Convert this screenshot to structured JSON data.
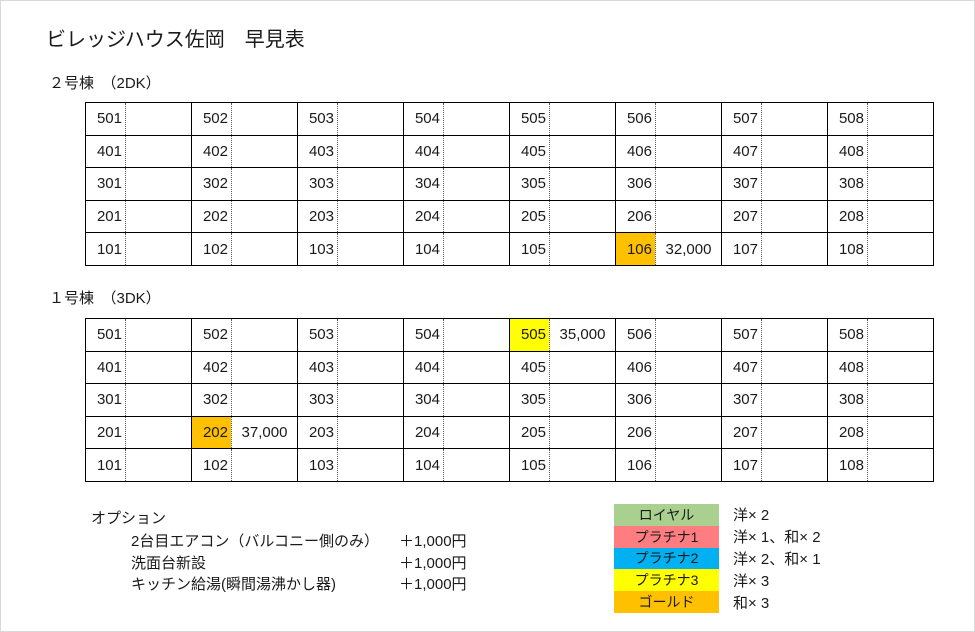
{
  "page": {
    "title": "ビレッジハウス佐岡　早見表"
  },
  "highlight_colors": {
    "gold": "#FFC000",
    "yellow": "#FFFF00"
  },
  "buildings": [
    {
      "name": "２号棟　（2DK）",
      "rows": [
        [
          {
            "room": "501"
          },
          {
            "room": "502"
          },
          {
            "room": "503"
          },
          {
            "room": "504"
          },
          {
            "room": "505"
          },
          {
            "room": "506"
          },
          {
            "room": "507"
          },
          {
            "room": "508"
          }
        ],
        [
          {
            "room": "401"
          },
          {
            "room": "402"
          },
          {
            "room": "403"
          },
          {
            "room": "404"
          },
          {
            "room": "405"
          },
          {
            "room": "406"
          },
          {
            "room": "407"
          },
          {
            "room": "408"
          }
        ],
        [
          {
            "room": "301"
          },
          {
            "room": "302"
          },
          {
            "room": "303"
          },
          {
            "room": "304"
          },
          {
            "room": "305"
          },
          {
            "room": "306"
          },
          {
            "room": "307"
          },
          {
            "room": "308"
          }
        ],
        [
          {
            "room": "201"
          },
          {
            "room": "202"
          },
          {
            "room": "203"
          },
          {
            "room": "204"
          },
          {
            "room": "205"
          },
          {
            "room": "206"
          },
          {
            "room": "207"
          },
          {
            "room": "208"
          }
        ],
        [
          {
            "room": "101"
          },
          {
            "room": "102"
          },
          {
            "room": "103"
          },
          {
            "room": "104"
          },
          {
            "room": "105"
          },
          {
            "room": "106",
            "price": "32,000",
            "highlight": "gold"
          },
          {
            "room": "107"
          },
          {
            "room": "108"
          }
        ]
      ]
    },
    {
      "name": "１号棟　（3DK）",
      "rows": [
        [
          {
            "room": "501"
          },
          {
            "room": "502"
          },
          {
            "room": "503"
          },
          {
            "room": "504"
          },
          {
            "room": "505",
            "price": "35,000",
            "highlight": "yellow"
          },
          {
            "room": "506"
          },
          {
            "room": "507"
          },
          {
            "room": "508"
          }
        ],
        [
          {
            "room": "401"
          },
          {
            "room": "402"
          },
          {
            "room": "403"
          },
          {
            "room": "404"
          },
          {
            "room": "405"
          },
          {
            "room": "406"
          },
          {
            "room": "407"
          },
          {
            "room": "408"
          }
        ],
        [
          {
            "room": "301"
          },
          {
            "room": "302"
          },
          {
            "room": "303"
          },
          {
            "room": "304"
          },
          {
            "room": "305"
          },
          {
            "room": "306"
          },
          {
            "room": "307"
          },
          {
            "room": "308"
          }
        ],
        [
          {
            "room": "201"
          },
          {
            "room": "202",
            "price": "37,000",
            "highlight": "gold"
          },
          {
            "room": "203"
          },
          {
            "room": "204"
          },
          {
            "room": "205"
          },
          {
            "room": "206"
          },
          {
            "room": "207"
          },
          {
            "room": "208"
          }
        ],
        [
          {
            "room": "101"
          },
          {
            "room": "102"
          },
          {
            "room": "103"
          },
          {
            "room": "104"
          },
          {
            "room": "105"
          },
          {
            "room": "106"
          },
          {
            "room": "107"
          },
          {
            "room": "108"
          }
        ]
      ]
    }
  ],
  "options": {
    "heading": "オプション",
    "items": [
      {
        "label": "2台目エアコン（バルコニー側のみ）",
        "price": "＋1,000円"
      },
      {
        "label": "洗面台新設",
        "price": "＋1,000円"
      },
      {
        "label": "キッチン給湯(瞬間湯沸かし器)",
        "price": "＋1,000円"
      }
    ]
  },
  "legend": {
    "items": [
      {
        "label": "ロイヤル",
        "color": "#A9D08E",
        "desc": "洋× 2"
      },
      {
        "label": "プラチナ1",
        "color": "#FF7C80",
        "desc": "洋× 1、和× 2"
      },
      {
        "label": "プラチナ2",
        "color": "#00B0F0",
        "desc": "洋× 2、和× 1"
      },
      {
        "label": "プラチナ3",
        "color": "#FFFF00",
        "desc": "洋× 3"
      },
      {
        "label": "ゴールド",
        "color": "#FFC000",
        "desc": "和× 3"
      }
    ]
  }
}
